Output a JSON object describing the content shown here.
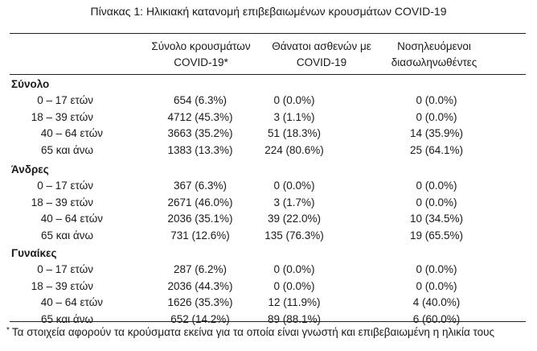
{
  "title": "Πίνακας 1: Ηλικιακή κατανομή επιβεβαιωμένων κρουσμάτων COVID-19",
  "columns": [
    {
      "line1": "Σύνολο κρουσμάτων",
      "line2": "COVID-19*"
    },
    {
      "line1": "Θάνατοι ασθενών με",
      "line2": "COVID-19"
    },
    {
      "line1": "Νοσηλευόμενοι",
      "line2": "διασωληνωθέντες"
    }
  ],
  "groups": [
    {
      "name": "Σύνολο",
      "rows": [
        {
          "age": "0 – 17 ετών",
          "cases": "654 (6.3%)",
          "deaths": "0 (0.0%)",
          "intubated": "0 (0.0%)"
        },
        {
          "age": "18 – 39 ετών",
          "cases": "4712 (45.3%)",
          "deaths": "3 (1.1%)",
          "intubated": "0 (0.0%)"
        },
        {
          "age": "40 – 64 ετών",
          "cases": "3663 (35.2%)",
          "deaths": "51 (18.3%)",
          "intubated": "14 (35.9%)"
        },
        {
          "age": "65 και άνω",
          "cases": "1383 (13.3%)",
          "deaths": "224 (80.6%)",
          "intubated": "25 (64.1%)"
        }
      ]
    },
    {
      "name": "Άνδρες",
      "rows": [
        {
          "age": "0 – 17 ετών",
          "cases": "367 (6.3%)",
          "deaths": "0 (0.0%)",
          "intubated": "0 (0.0%)"
        },
        {
          "age": "18 – 39 ετών",
          "cases": "2671 (46.0%)",
          "deaths": "3 (1.7%)",
          "intubated": "0 (0.0%)"
        },
        {
          "age": "40 – 64 ετών",
          "cases": "2036 (35.1%)",
          "deaths": "39 (22.0%)",
          "intubated": "10 (34.5%)"
        },
        {
          "age": "65 και άνω",
          "cases": "731 (12.6%)",
          "deaths": "135 (76.3%)",
          "intubated": "19 (65.5%)"
        }
      ]
    },
    {
      "name": "Γυναίκες",
      "rows": [
        {
          "age": "0 – 17 ετών",
          "cases": "287 (6.2%)",
          "deaths": "0 (0.0%)",
          "intubated": "0 (0.0%)"
        },
        {
          "age": "18 – 39 ετών",
          "cases": "2036 (44.3%)",
          "deaths": "0 (0.0%)",
          "intubated": "0 (0.0%)"
        },
        {
          "age": "40 – 64 ετών",
          "cases": "1626 (35.3%)",
          "deaths": "12 (11.9%)",
          "intubated": "4 (40.0%)"
        },
        {
          "age": "65 και άνω",
          "cases": "652 (14.2%)",
          "deaths": "89 (88.1%)",
          "intubated": "6 (60.0%)"
        }
      ]
    }
  ],
  "footnote": {
    "marker": "*",
    "text": "Τα στοιχεία αφορούν τα κρούσματα εκείνα για τα οποία είναι γνωστή και επιβεβαιωμένη η ηλικία τους"
  }
}
